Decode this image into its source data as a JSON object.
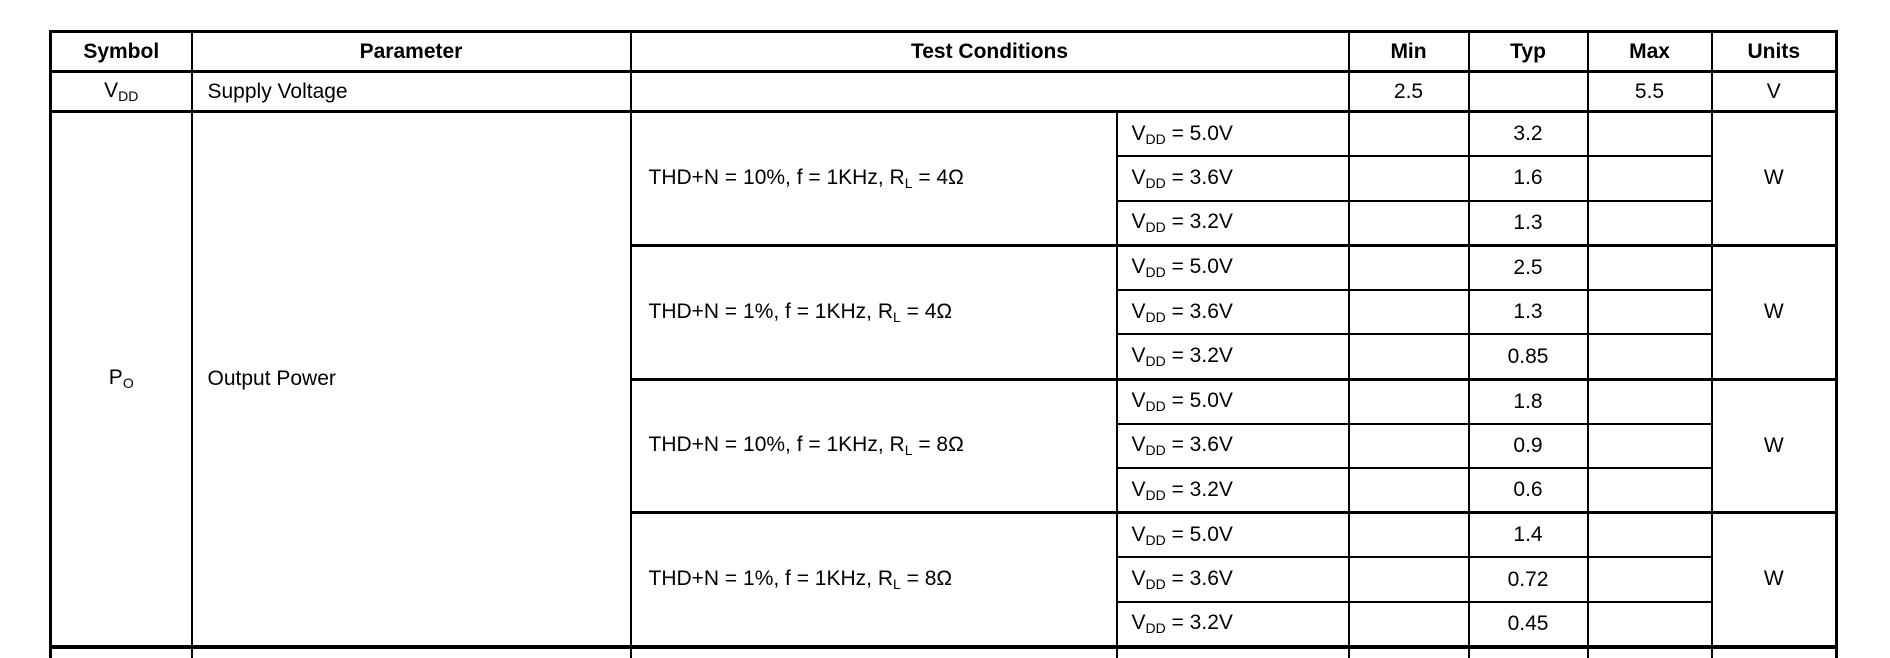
{
  "header": {
    "symbol": "Symbol",
    "parameter": "Parameter",
    "test_conditions": "Test Conditions",
    "min": "Min",
    "typ": "Typ",
    "max": "Max",
    "units": "Units"
  },
  "supply_row": {
    "symbol": {
      "base": "V",
      "sub": "DD"
    },
    "parameter": "Supply Voltage",
    "test_condition": "",
    "min": "2.5",
    "typ": "",
    "max": "5.5",
    "units": "V"
  },
  "output_power": {
    "symbol": {
      "base": "P",
      "sub": "O"
    },
    "parameter": "Output Power",
    "groups": [
      {
        "condition": {
          "pre": "THD+N = 10%, f = 1KHz, R",
          "sub": "L",
          "post": " = 4Ω"
        },
        "units": "W",
        "rows": [
          {
            "cond": {
              "pre": "V",
              "sub": "DD",
              "post": " = 5.0V"
            },
            "min": "",
            "typ": "3.2",
            "max": ""
          },
          {
            "cond": {
              "pre": "V",
              "sub": "DD",
              "post": " = 3.6V"
            },
            "min": "",
            "typ": "1.6",
            "max": ""
          },
          {
            "cond": {
              "pre": "V",
              "sub": "DD",
              "post": " = 3.2V"
            },
            "min": "",
            "typ": "1.3",
            "max": ""
          }
        ]
      },
      {
        "condition": {
          "pre": "THD+N = 1%, f = 1KHz, R",
          "sub": "L",
          "post": " = 4Ω"
        },
        "units": "W",
        "rows": [
          {
            "cond": {
              "pre": "V",
              "sub": "DD",
              "post": " = 5.0V"
            },
            "min": "",
            "typ": "2.5",
            "max": ""
          },
          {
            "cond": {
              "pre": "V",
              "sub": "DD",
              "post": " = 3.6V"
            },
            "min": "",
            "typ": "1.3",
            "max": ""
          },
          {
            "cond": {
              "pre": "V",
              "sub": "DD",
              "post": " = 3.2V"
            },
            "min": "",
            "typ": "0.85",
            "max": ""
          }
        ]
      },
      {
        "condition": {
          "pre": "THD+N = 10%, f = 1KHz, R",
          "sub": "L",
          "post": " = 8Ω"
        },
        "units": "W",
        "rows": [
          {
            "cond": {
              "pre": "V",
              "sub": "DD",
              "post": " = 5.0V"
            },
            "min": "",
            "typ": "1.8",
            "max": ""
          },
          {
            "cond": {
              "pre": "V",
              "sub": "DD",
              "post": " = 3.6V"
            },
            "min": "",
            "typ": "0.9",
            "max": ""
          },
          {
            "cond": {
              "pre": "V",
              "sub": "DD",
              "post": " = 3.2V"
            },
            "min": "",
            "typ": "0.6",
            "max": ""
          }
        ]
      },
      {
        "condition": {
          "pre": "THD+N = 1%, f = 1KHz, R",
          "sub": "L",
          "post": " = 8Ω"
        },
        "units": "W",
        "rows": [
          {
            "cond": {
              "pre": "V",
              "sub": "DD",
              "post": " = 5.0V"
            },
            "min": "",
            "typ": "1.4",
            "max": ""
          },
          {
            "cond": {
              "pre": "V",
              "sub": "DD",
              "post": " = 3.6V"
            },
            "min": "",
            "typ": "0.72",
            "max": ""
          },
          {
            "cond": {
              "pre": "V",
              "sub": "DD",
              "post": " = 3.2V"
            },
            "min": "",
            "typ": "0.45",
            "max": ""
          }
        ]
      }
    ]
  },
  "colors": {
    "text": "#000000",
    "background": "#ffffff",
    "border": "#000000"
  }
}
